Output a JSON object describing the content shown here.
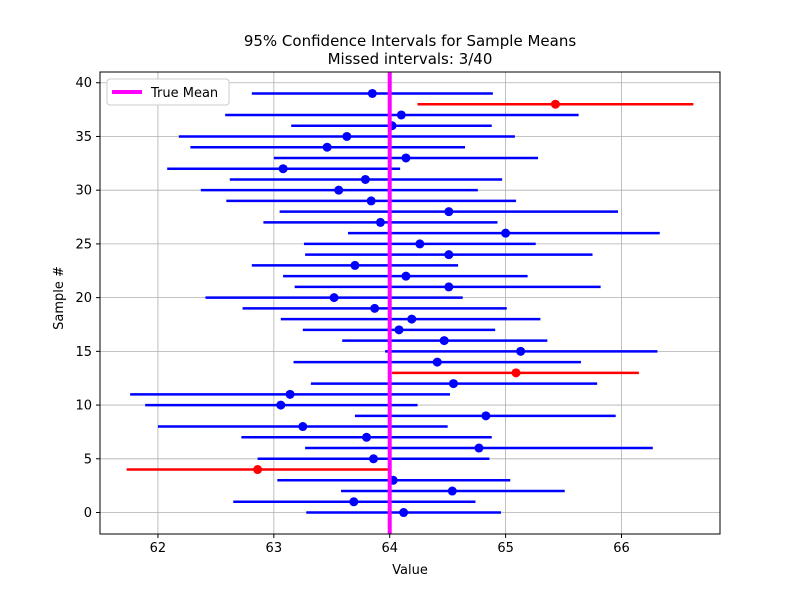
{
  "chart_data": {
    "type": "scatter",
    "title": "95% Confidence Intervals for Sample Means",
    "subtitle": "Missed intervals: 3/40",
    "xlabel": "Value",
    "ylabel": "Sample #",
    "xlim": [
      61.5,
      66.85
    ],
    "ylim": [
      -2,
      41
    ],
    "xticks": [
      62,
      63,
      64,
      65,
      66
    ],
    "yticks": [
      0,
      5,
      10,
      15,
      20,
      25,
      30,
      35,
      40
    ],
    "grid": true,
    "legend": {
      "position": "upper-left",
      "entries": [
        {
          "label": "True Mean",
          "color": "#ff00ff"
        }
      ]
    },
    "true_mean": 64.0,
    "colors": {
      "covered": "#0000ff",
      "missed": "#ff0000",
      "true_mean": "#ff00ff"
    },
    "intervals": [
      {
        "sample": 0,
        "mean": 64.12,
        "lower": 63.28,
        "upper": 64.96,
        "missed": false
      },
      {
        "sample": 1,
        "mean": 63.69,
        "lower": 62.65,
        "upper": 64.74,
        "missed": false
      },
      {
        "sample": 2,
        "mean": 64.54,
        "lower": 63.58,
        "upper": 65.51,
        "missed": false
      },
      {
        "sample": 3,
        "mean": 64.03,
        "lower": 63.03,
        "upper": 65.04,
        "missed": false
      },
      {
        "sample": 4,
        "mean": 62.86,
        "lower": 61.73,
        "upper": 63.99,
        "missed": true
      },
      {
        "sample": 5,
        "mean": 63.86,
        "lower": 62.86,
        "upper": 64.86,
        "missed": false
      },
      {
        "sample": 6,
        "mean": 64.77,
        "lower": 63.27,
        "upper": 66.27,
        "missed": false
      },
      {
        "sample": 7,
        "mean": 63.8,
        "lower": 62.72,
        "upper": 64.88,
        "missed": false
      },
      {
        "sample": 8,
        "mean": 63.25,
        "lower": 62.0,
        "upper": 64.5,
        "missed": false
      },
      {
        "sample": 9,
        "mean": 64.83,
        "lower": 63.7,
        "upper": 65.95,
        "missed": false
      },
      {
        "sample": 10,
        "mean": 63.06,
        "lower": 61.89,
        "upper": 64.24,
        "missed": false
      },
      {
        "sample": 11,
        "mean": 63.14,
        "lower": 61.76,
        "upper": 64.52,
        "missed": false
      },
      {
        "sample": 12,
        "mean": 64.55,
        "lower": 63.32,
        "upper": 65.79,
        "missed": false
      },
      {
        "sample": 13,
        "mean": 65.09,
        "lower": 64.02,
        "upper": 66.15,
        "missed": true
      },
      {
        "sample": 14,
        "mean": 64.41,
        "lower": 63.17,
        "upper": 65.65,
        "missed": false
      },
      {
        "sample": 15,
        "mean": 65.13,
        "lower": 63.96,
        "upper": 66.31,
        "missed": false
      },
      {
        "sample": 16,
        "mean": 64.47,
        "lower": 63.59,
        "upper": 65.36,
        "missed": false
      },
      {
        "sample": 17,
        "mean": 64.08,
        "lower": 63.25,
        "upper": 64.91,
        "missed": false
      },
      {
        "sample": 18,
        "mean": 64.19,
        "lower": 63.06,
        "upper": 65.3,
        "missed": false
      },
      {
        "sample": 19,
        "mean": 63.87,
        "lower": 62.73,
        "upper": 65.01,
        "missed": false
      },
      {
        "sample": 20,
        "mean": 63.52,
        "lower": 62.41,
        "upper": 64.63,
        "missed": false
      },
      {
        "sample": 21,
        "mean": 64.51,
        "lower": 63.18,
        "upper": 65.82,
        "missed": false
      },
      {
        "sample": 22,
        "mean": 64.14,
        "lower": 63.08,
        "upper": 65.19,
        "missed": false
      },
      {
        "sample": 23,
        "mean": 63.7,
        "lower": 62.81,
        "upper": 64.59,
        "missed": false
      },
      {
        "sample": 24,
        "mean": 64.51,
        "lower": 63.27,
        "upper": 65.75,
        "missed": false
      },
      {
        "sample": 25,
        "mean": 64.26,
        "lower": 63.26,
        "upper": 65.26,
        "missed": false
      },
      {
        "sample": 26,
        "mean": 65.0,
        "lower": 63.64,
        "upper": 66.33,
        "missed": false
      },
      {
        "sample": 27,
        "mean": 63.92,
        "lower": 62.91,
        "upper": 64.93,
        "missed": false
      },
      {
        "sample": 28,
        "mean": 64.51,
        "lower": 63.05,
        "upper": 65.97,
        "missed": false
      },
      {
        "sample": 29,
        "mean": 63.84,
        "lower": 62.59,
        "upper": 65.09,
        "missed": false
      },
      {
        "sample": 30,
        "mean": 63.56,
        "lower": 62.37,
        "upper": 64.76,
        "missed": false
      },
      {
        "sample": 31,
        "mean": 63.79,
        "lower": 62.62,
        "upper": 64.97,
        "missed": false
      },
      {
        "sample": 32,
        "mean": 63.08,
        "lower": 62.08,
        "upper": 64.09,
        "missed": false
      },
      {
        "sample": 33,
        "mean": 64.14,
        "lower": 63.0,
        "upper": 65.28,
        "missed": false
      },
      {
        "sample": 34,
        "mean": 63.46,
        "lower": 62.28,
        "upper": 64.65,
        "missed": false
      },
      {
        "sample": 35,
        "mean": 63.63,
        "lower": 62.18,
        "upper": 65.08,
        "missed": false
      },
      {
        "sample": 36,
        "mean": 64.02,
        "lower": 63.15,
        "upper": 64.88,
        "missed": false
      },
      {
        "sample": 37,
        "mean": 64.1,
        "lower": 62.58,
        "upper": 65.63,
        "missed": false
      },
      {
        "sample": 38,
        "mean": 65.43,
        "lower": 64.24,
        "upper": 66.62,
        "missed": true
      },
      {
        "sample": 39,
        "mean": 63.85,
        "lower": 62.81,
        "upper": 64.89,
        "missed": false
      }
    ]
  }
}
